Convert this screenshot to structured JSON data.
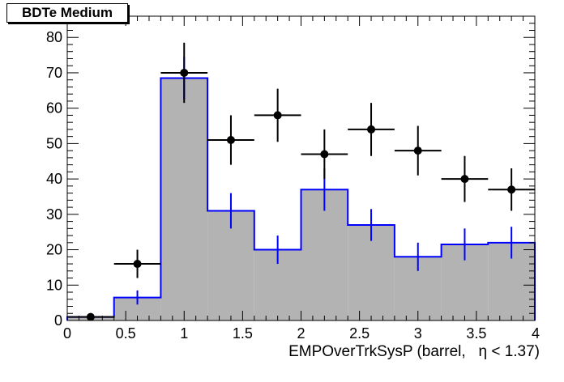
{
  "chart_data": {
    "type": "bar",
    "title": "BDTe Medium",
    "xlabel": "EMPOverTrkSysP (barrel,   η < 1.37)",
    "ylabel": "",
    "xlim": [
      0,
      4
    ],
    "ylim": [
      0,
      86
    ],
    "grid": false,
    "x_ticks": [
      "0",
      "0.5",
      "1",
      "1.5",
      "2",
      "2.5",
      "3",
      "3.5",
      "4"
    ],
    "y_ticks": [
      "0",
      "10",
      "20",
      "30",
      "40",
      "50",
      "60",
      "70",
      "80"
    ],
    "bin_edges": [
      0,
      0.4,
      0.8,
      1.2,
      1.6,
      2.0,
      2.4,
      2.8,
      3.2,
      3.6,
      4.0
    ],
    "series": [
      {
        "style": "filled-histogram",
        "color": "#0000ff",
        "fill": "#b3b3b3",
        "values": [
          1,
          6.5,
          68.5,
          31,
          20,
          37,
          27,
          18,
          21.5,
          22
        ],
        "errors": [
          0.5,
          2,
          6,
          5,
          4,
          6,
          4.5,
          4,
          4.5,
          4.5
        ]
      },
      {
        "style": "points",
        "color": "#000000",
        "x": [
          0.2,
          0.6,
          1.0,
          1.4,
          1.8,
          2.2,
          2.6,
          3.0,
          3.4,
          3.8
        ],
        "values": [
          1,
          16,
          70,
          51,
          58,
          47,
          54,
          48,
          40,
          37
        ],
        "errors": [
          1,
          4,
          8.5,
          7,
          7.5,
          7,
          7.5,
          7,
          6.5,
          6
        ]
      }
    ]
  }
}
